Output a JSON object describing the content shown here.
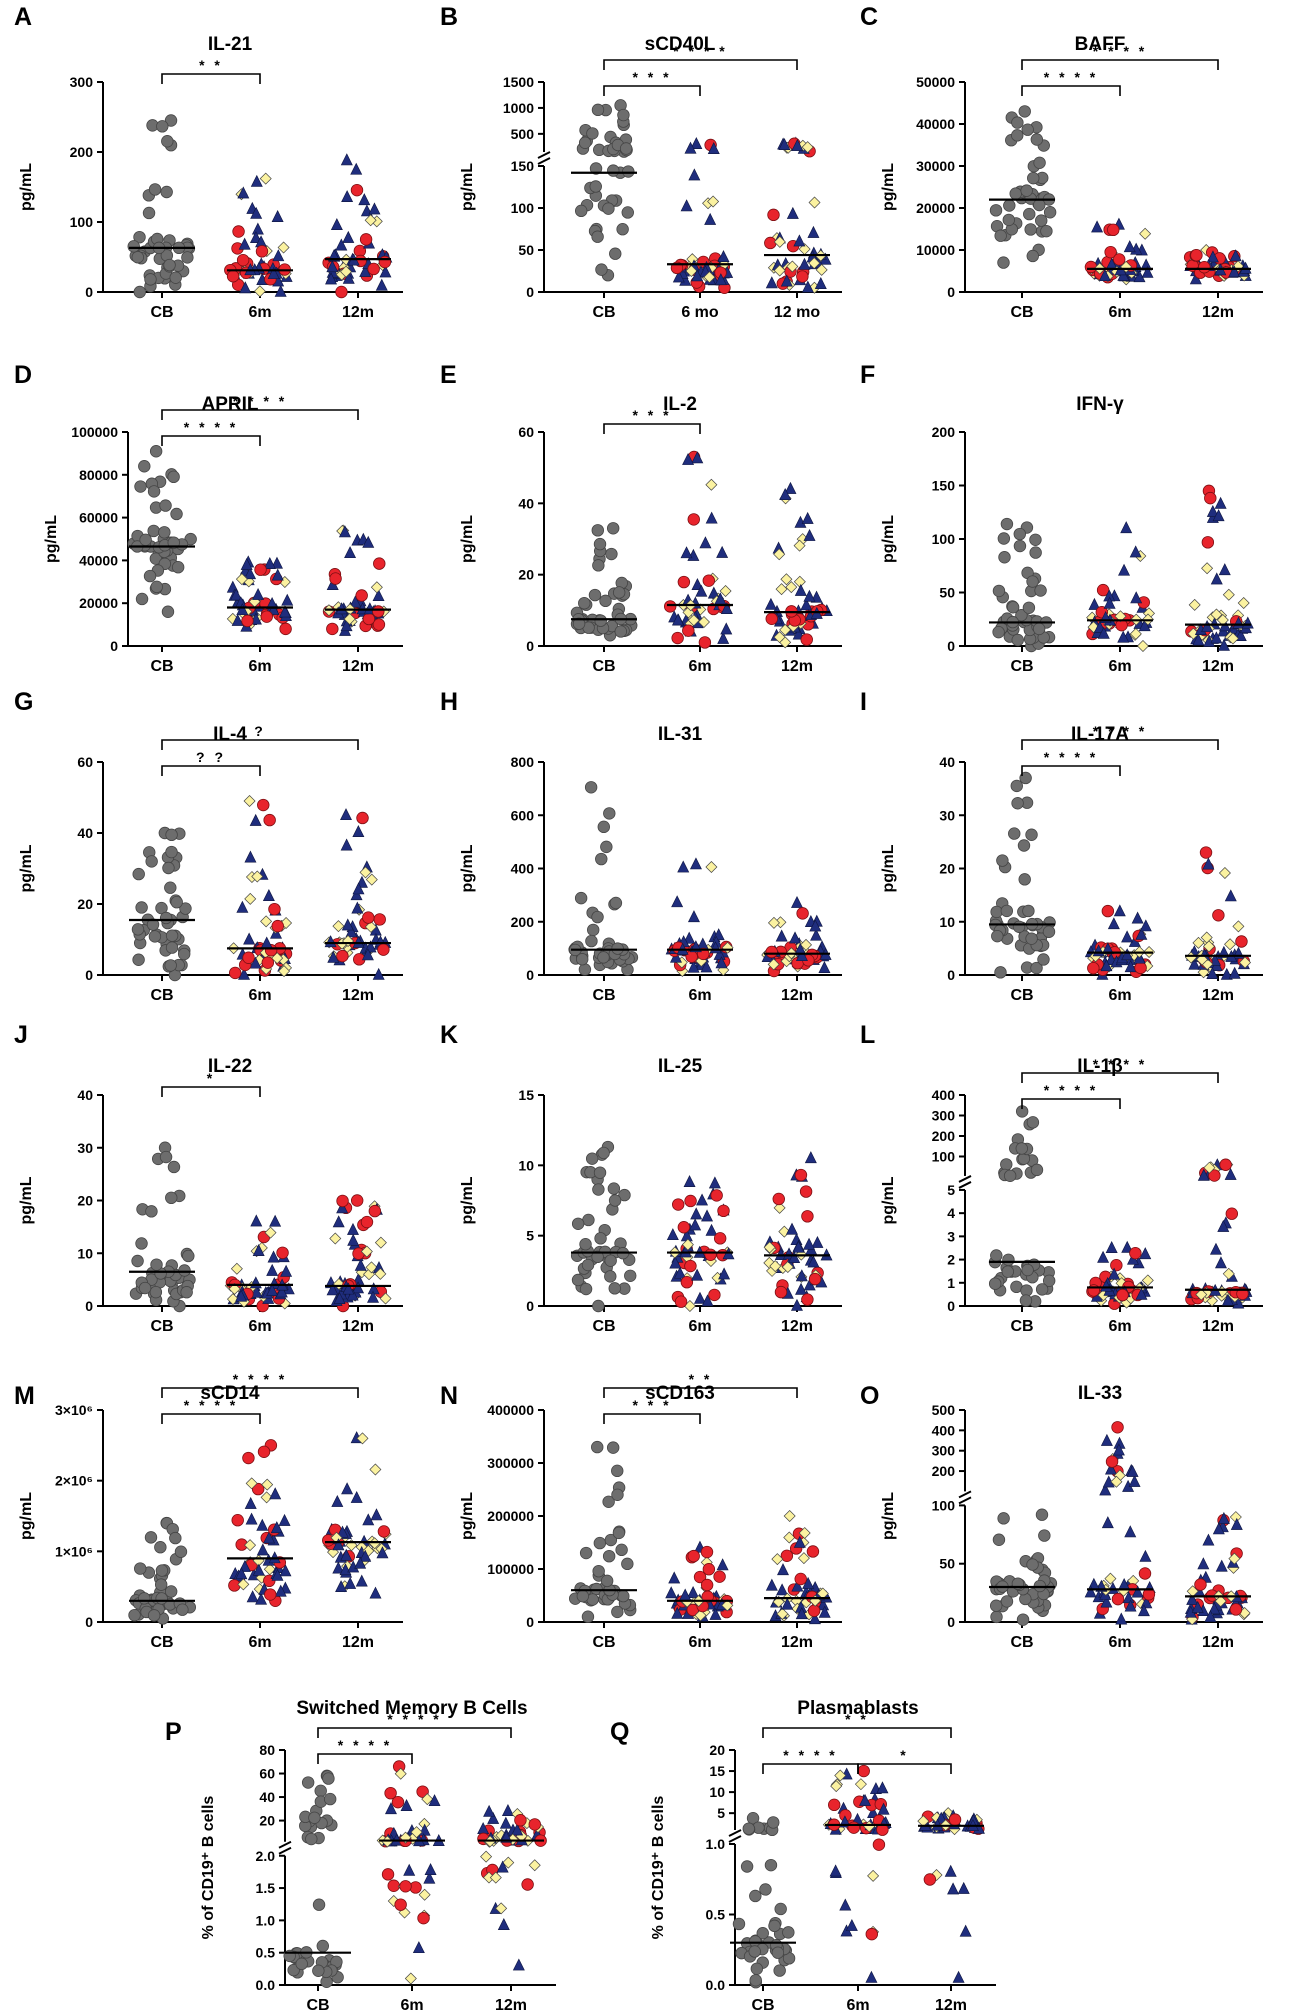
{
  "colors": {
    "cb": "#6d6d6d",
    "red": "#e8242c",
    "navy": "#1f2d7d",
    "yellow": "#fbf2a0",
    "edge": "#333333"
  },
  "chart_data": [
    {
      "id": "A",
      "type": "scatter",
      "title": "IL-21",
      "ylabel": "pg/mL",
      "categories": [
        "CB",
        "6m",
        "12m"
      ],
      "ylim": [
        0,
        300
      ],
      "yticks": [
        0,
        100,
        200,
        300
      ],
      "medians": [
        63,
        31,
        47
      ],
      "ranges": [
        [
          0,
          245
        ],
        [
          0,
          162
        ],
        [
          0,
          188
        ]
      ],
      "comparisons": [
        {
          "from": 0,
          "to": 1,
          "label": "* *"
        }
      ]
    },
    {
      "id": "B",
      "type": "scatter",
      "title": "sCD40L",
      "ylabel": "pg/mL",
      "categories": [
        "CB",
        "6 mo",
        "12 mo"
      ],
      "ybreak": {
        "lower": [
          0,
          150
        ],
        "upper": [
          150,
          1500
        ],
        "lower_ticks": [
          0,
          50,
          100,
          150
        ],
        "upper_ticks": [
          500,
          1000,
          1500
        ]
      },
      "medians": [
        142,
        33,
        44
      ],
      "ranges": [
        [
          20,
          1050
        ],
        [
          5,
          300
        ],
        [
          5,
          310
        ]
      ],
      "comparisons": [
        {
          "from": 0,
          "to": 1,
          "label": "* * *"
        },
        {
          "from": 0,
          "to": 2,
          "label": "* * * *"
        }
      ]
    },
    {
      "id": "C",
      "type": "scatter",
      "title": "BAFF",
      "ylabel": "pg/mL",
      "categories": [
        "CB",
        "6m",
        "12m"
      ],
      "ylim": [
        0,
        50000
      ],
      "yticks": [
        0,
        10000,
        20000,
        30000,
        40000,
        50000
      ],
      "medians": [
        22000,
        5500,
        5500
      ],
      "ranges": [
        [
          7000,
          43000
        ],
        [
          3000,
          16000
        ],
        [
          3000,
          10000
        ]
      ],
      "comparisons": [
        {
          "from": 0,
          "to": 1,
          "label": "* * * *"
        },
        {
          "from": 0,
          "to": 2,
          "label": "* * * *"
        }
      ]
    },
    {
      "id": "D",
      "type": "scatter",
      "title": "APRIL",
      "ylabel": "pg/mL",
      "categories": [
        "CB",
        "6m",
        "12m"
      ],
      "ylim": [
        0,
        100000
      ],
      "yticks": [
        0,
        20000,
        40000,
        60000,
        80000,
        100000
      ],
      "medians": [
        46500,
        18000,
        17000
      ],
      "ranges": [
        [
          16000,
          91000
        ],
        [
          8000,
          39000
        ],
        [
          7000,
          54000
        ]
      ],
      "comparisons": [
        {
          "from": 0,
          "to": 1,
          "label": "* * * *"
        },
        {
          "from": 0,
          "to": 2,
          "label": "* * * *"
        }
      ]
    },
    {
      "id": "E",
      "type": "scatter",
      "title": "IL-2",
      "ylabel": "pg/mL",
      "categories": [
        "CB",
        "6m",
        "12m"
      ],
      "ylim": [
        0,
        60
      ],
      "yticks": [
        0,
        20,
        40,
        60
      ],
      "medians": [
        7.5,
        11.5,
        9.5
      ],
      "ranges": [
        [
          3,
          33
        ],
        [
          1,
          53
        ],
        [
          1,
          44
        ]
      ],
      "comparisons": [
        {
          "from": 0,
          "to": 1,
          "label": "* * *"
        }
      ]
    },
    {
      "id": "F",
      "type": "scatter",
      "title": "IFN-γ",
      "ylabel": "pg/mL",
      "categories": [
        "CB",
        "6m",
        "12m"
      ],
      "ylim": [
        0,
        200
      ],
      "yticks": [
        0,
        50,
        100,
        150,
        200
      ],
      "medians": [
        22,
        24,
        20
      ],
      "ranges": [
        [
          0,
          114
        ],
        [
          0,
          110
        ],
        [
          0,
          145
        ]
      ],
      "comparisons": []
    },
    {
      "id": "G",
      "type": "scatter",
      "title": "IL-4",
      "ylabel": "pg/mL",
      "categories": [
        "CB",
        "6m",
        "12m"
      ],
      "ylim": [
        0,
        60
      ],
      "yticks": [
        0,
        20,
        40,
        60
      ],
      "medians": [
        15.5,
        7.5,
        9
      ],
      "ranges": [
        [
          0,
          40
        ],
        [
          0,
          49
        ],
        [
          0,
          45
        ]
      ],
      "comparisons": [
        {
          "from": 0,
          "to": 1,
          "label": "? ?"
        },
        {
          "from": 0,
          "to": 2,
          "label": "?"
        }
      ]
    },
    {
      "id": "H",
      "type": "scatter",
      "title": "IL-31",
      "ylabel": "pg/mL",
      "categories": [
        "CB",
        "6m",
        "12m"
      ],
      "ylim": [
        0,
        800
      ],
      "yticks": [
        0,
        200,
        400,
        600,
        800
      ],
      "medians": [
        95,
        95,
        80
      ],
      "ranges": [
        [
          20,
          705
        ],
        [
          15,
          415
        ],
        [
          15,
          270
        ]
      ],
      "comparisons": []
    },
    {
      "id": "I",
      "type": "scatter",
      "title": "IL-17A",
      "ylabel": "pg/mL",
      "categories": [
        "CB",
        "6m",
        "12m"
      ],
      "ylim": [
        0,
        40
      ],
      "yticks": [
        0,
        10,
        20,
        30,
        40
      ],
      "medians": [
        9.5,
        4.2,
        3.6
      ],
      "ranges": [
        [
          0.5,
          37
        ],
        [
          0,
          12
        ],
        [
          0,
          23
        ]
      ],
      "comparisons": [
        {
          "from": 0,
          "to": 1,
          "label": "* * * *"
        },
        {
          "from": 0,
          "to": 2,
          "label": "* * * *"
        }
      ]
    },
    {
      "id": "J",
      "type": "scatter",
      "title": "IL-22",
      "ylabel": "pg/mL",
      "categories": [
        "CB",
        "6m",
        "12m"
      ],
      "ylim": [
        0,
        40
      ],
      "yticks": [
        0,
        10,
        20,
        30,
        40
      ],
      "medians": [
        6.5,
        4,
        3.8
      ],
      "ranges": [
        [
          0,
          30
        ],
        [
          0,
          16
        ],
        [
          0,
          20
        ]
      ],
      "comparisons": [
        {
          "from": 0,
          "to": 1,
          "label": "*"
        }
      ]
    },
    {
      "id": "K",
      "type": "scatter",
      "title": "IL-25",
      "ylabel": "pg/mL",
      "categories": [
        "CB",
        "6m",
        "12m"
      ],
      "ylim": [
        0,
        15
      ],
      "yticks": [
        0,
        5,
        10,
        15
      ],
      "medians": [
        3.8,
        3.8,
        3.6
      ],
      "ranges": [
        [
          0,
          11.3
        ],
        [
          0,
          8.8
        ],
        [
          0,
          10.5
        ]
      ],
      "comparisons": []
    },
    {
      "id": "L",
      "type": "scatter",
      "title": "IL-1β",
      "ylabel": "pg/mL",
      "categories": [
        "CB",
        "6m",
        "12m"
      ],
      "ybreak": {
        "lower": [
          0,
          5
        ],
        "upper": [
          5,
          400
        ],
        "lower_ticks": [
          0,
          1,
          2,
          3,
          4,
          5
        ],
        "upper_ticks": [
          100,
          200,
          300,
          400
        ]
      },
      "medians": [
        1.9,
        0.8,
        0.7
      ],
      "ranges": [
        [
          0.2,
          320
        ],
        [
          0.1,
          2.5
        ],
        [
          0.1,
          60
        ]
      ],
      "comparisons": [
        {
          "from": 0,
          "to": 1,
          "label": "* * * *"
        },
        {
          "from": 0,
          "to": 2,
          "label": "* * * *"
        }
      ]
    },
    {
      "id": "M",
      "type": "scatter",
      "title": "sCD14",
      "ylabel": "pg/mL",
      "categories": [
        "CB",
        "6m",
        "12m"
      ],
      "ylim": [
        0,
        3000000
      ],
      "yticks": [
        0,
        1000000,
        2000000,
        3000000
      ],
      "ytick_labels": [
        "0",
        "1×10⁶",
        "2×10⁶",
        "3×10⁶"
      ],
      "medians": [
        300000,
        900000,
        1130000
      ],
      "ranges": [
        [
          50000,
          1400000
        ],
        [
          300000,
          2500000
        ],
        [
          400000,
          2600000
        ]
      ],
      "comparisons": [
        {
          "from": 0,
          "to": 1,
          "label": "* * * *"
        },
        {
          "from": 0,
          "to": 2,
          "label": "* * * *"
        }
      ]
    },
    {
      "id": "N",
      "type": "scatter",
      "title": "sCD163",
      "ylabel": "pg/mL",
      "categories": [
        "CB",
        "6m",
        "12m"
      ],
      "ylim": [
        0,
        400000
      ],
      "yticks": [
        0,
        100000,
        200000,
        300000,
        400000
      ],
      "medians": [
        60000,
        40000,
        45000
      ],
      "ranges": [
        [
          10000,
          330000
        ],
        [
          10000,
          140000
        ],
        [
          5000,
          200000
        ]
      ],
      "comparisons": [
        {
          "from": 0,
          "to": 1,
          "label": "* * *"
        },
        {
          "from": 0,
          "to": 2,
          "label": "* *"
        }
      ]
    },
    {
      "id": "O",
      "type": "scatter",
      "title": "IL-33",
      "ylabel": "pg/mL",
      "categories": [
        "CB",
        "6m",
        "12m"
      ],
      "ybreak": {
        "lower": [
          0,
          100
        ],
        "upper": [
          100,
          500
        ],
        "lower_ticks": [
          0,
          50,
          100
        ],
        "upper_ticks": [
          200,
          300,
          400,
          500
        ]
      },
      "medians": [
        30,
        28,
        22
      ],
      "ranges": [
        [
          2,
          92
        ],
        [
          2,
          415
        ],
        [
          2,
          90
        ]
      ],
      "comparisons": []
    },
    {
      "id": "P",
      "type": "scatter",
      "title": "Switched Memory B Cells",
      "ylabel": "% of CD19⁺ B cells",
      "categories": [
        "CB",
        "6m",
        "12m"
      ],
      "ybreak": {
        "lower": [
          0,
          2
        ],
        "upper": [
          2,
          80
        ],
        "lower_ticks": [
          0,
          0.5,
          1.0,
          1.5,
          2.0
        ],
        "upper_ticks": [
          20,
          40,
          60,
          80
        ],
        "lower_tick_labels": [
          "0.0",
          "0.5",
          "1.0",
          "1.5",
          "2.0"
        ]
      },
      "medians": [
        0.5,
        3,
        3
      ],
      "ranges": [
        [
          0.05,
          58
        ],
        [
          0.1,
          66
        ],
        [
          0.3,
          28
        ]
      ],
      "comparisons": [
        {
          "from": 0,
          "to": 1,
          "label": "* * * *"
        },
        {
          "from": 0,
          "to": 2,
          "label": "* * * *"
        }
      ]
    },
    {
      "id": "Q",
      "type": "scatter",
      "title": "Plasmablasts",
      "ylabel": "% of CD19⁺ B cells",
      "categories": [
        "CB",
        "6m",
        "12m"
      ],
      "ybreak": {
        "lower": [
          0,
          1
        ],
        "upper": [
          1,
          20
        ],
        "lower_ticks": [
          0,
          0.5,
          1.0
        ],
        "upper_ticks": [
          5,
          10,
          15,
          20
        ],
        "lower_tick_labels": [
          "0.0",
          "0.5",
          "1.0"
        ]
      },
      "medians": [
        0.3,
        2.2,
        2
      ],
      "ranges": [
        [
          0.02,
          3.8
        ],
        [
          0.05,
          15
        ],
        [
          0.05,
          5
        ]
      ],
      "comparisons": [
        {
          "from": 0,
          "to": 1,
          "label": "* * * *"
        },
        {
          "from": 0,
          "to": 2,
          "label": "* *"
        },
        {
          "from": 1,
          "to": 2,
          "label": "*"
        }
      ]
    }
  ]
}
